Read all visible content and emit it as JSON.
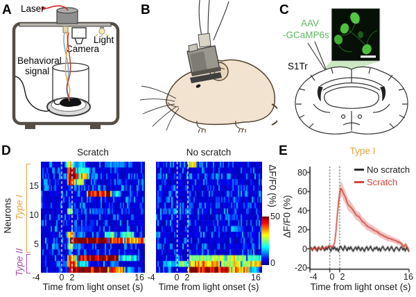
{
  "panel_letters": {
    "a": "A",
    "b": "B",
    "c": "C",
    "d": "D",
    "e": "E"
  },
  "panel_a": {
    "laser_label": "Laser",
    "camera_label": "Camera",
    "light_label": "Light",
    "behavioral_line1": "Behavioral",
    "behavioral_line2": "signal"
  },
  "panel_c": {
    "aav_line1": "AAV",
    "aav_line2": "-GCaMP6s",
    "region_label": "S1Tr"
  },
  "panel_d": {
    "title_left": "Scratch",
    "title_right": "No scratch",
    "y_axis_label": "Neurons",
    "type1_label": "Type I",
    "type2_label": "Type II",
    "y_ticks": [
      "15",
      "10",
      "5"
    ],
    "x_ticks": [
      "-4",
      "0",
      "2",
      "16"
    ],
    "x_axis_label": "Time from light onset (s)",
    "colorbar_label": "ΔF/F0 (%)",
    "colorbar_max": "50",
    "colorbar_min": "0"
  },
  "panel_e": {
    "title": "Type I",
    "legend": [
      {
        "label": "No scratch",
        "color": "#2b2b2b"
      },
      {
        "label": "Scratch",
        "color": "#cf453c"
      }
    ],
    "y_label": "ΔF/F0 (%)",
    "x_label": "Time from light onset (s)",
    "y_ticks": [
      "80",
      "60",
      "40",
      "20",
      "0",
      "-20"
    ],
    "x_ticks": [
      "-4",
      "0",
      "2",
      "16"
    ]
  },
  "colors": {
    "type1_orange": "#e8a33d",
    "type2_purple": "#a94fa4",
    "scratch_red": "#cf453c",
    "no_scratch_black": "#2b2b2b",
    "gcamp_green": "#5cb85c",
    "heatmap_dash": "#ffffff"
  },
  "chart_data": [
    {
      "type": "heatmap",
      "title": "Scratch",
      "x_range": [
        -4,
        16
      ],
      "neurons": 19,
      "type1_neurons": [
        4,
        19
      ],
      "type2_neurons": [
        1,
        3
      ],
      "value_range": [
        0,
        50
      ],
      "colormap": "jet",
      "event_lines_s": [
        0,
        2
      ],
      "seed": 11,
      "events": [
        {
          "neuron": 19,
          "segments": [
            [
              0.6,
              2.4,
              32
            ],
            [
              2.4,
              4.6,
              15
            ],
            [
              8,
              12.5,
              12
            ]
          ]
        },
        {
          "neuron": 18,
          "segments": [
            [
              0.8,
              2.8,
              42
            ],
            [
              2.8,
              5.5,
              20
            ],
            [
              10,
              11,
              8
            ]
          ]
        },
        {
          "neuron": 17,
          "segments": [
            [
              0.9,
              3.3,
              50
            ],
            [
              3.3,
              5.2,
              36
            ],
            [
              5.2,
              7,
              14
            ]
          ]
        },
        {
          "neuron": 16,
          "segments": [
            [
              0.9,
              2.6,
              48
            ],
            [
              2.6,
              4.3,
              32
            ]
          ]
        },
        {
          "neuron": 15,
          "segments": [
            [
              1,
              2,
              10
            ]
          ]
        },
        {
          "neuron": 14,
          "segments": [
            [
              4.6,
              9.6,
              44
            ],
            [
              9.6,
              11.2,
              18
            ]
          ]
        },
        {
          "neuron": 13,
          "segments": [
            [
              2,
              3,
              6
            ]
          ]
        },
        {
          "neuron": 12,
          "segments": [
            [
              1,
              2.2,
              12
            ]
          ]
        },
        {
          "neuron": 11,
          "segments": [
            [
              0.8,
              2.1,
              30
            ],
            [
              2.1,
              3.2,
              12
            ],
            [
              6,
              8.2,
              10
            ]
          ]
        },
        {
          "neuron": 10,
          "segments": [
            [
              3,
              4,
              6
            ]
          ]
        },
        {
          "neuron": 9,
          "segments": [
            [
              5,
              6.5,
              7
            ]
          ]
        },
        {
          "neuron": 8,
          "segments": [
            [
              2,
              6,
              9
            ]
          ]
        },
        {
          "neuron": 7,
          "segments": [
            [
              0.8,
              2.5,
              34
            ],
            [
              2.5,
              4.2,
              14
            ],
            [
              8,
              10.2,
              24
            ],
            [
              11,
              14,
              22
            ]
          ]
        },
        {
          "neuron": 6,
          "segments": [
            [
              1.2,
              8.8,
              52
            ],
            [
              8.8,
              12,
              42
            ],
            [
              12,
              16,
              38
            ]
          ]
        },
        {
          "neuron": 5,
          "segments": [
            [
              0.9,
              2.2,
              30
            ],
            [
              2.2,
              4,
              12
            ]
          ]
        },
        {
          "neuron": 4,
          "segments": [
            [
              1,
              1.9,
              13
            ]
          ]
        },
        {
          "neuron": 3,
          "segments": [
            [
              0.9,
              2.9,
              36
            ],
            [
              2.9,
              11,
              52
            ],
            [
              11,
              14.5,
              20
            ]
          ]
        },
        {
          "neuron": 2,
          "segments": [
            [
              0.8,
              3,
              40
            ],
            [
              3,
              5.2,
              18
            ],
            [
              9,
              10.6,
              14
            ]
          ]
        },
        {
          "neuron": 1,
          "segments": [
            [
              1.1,
              9,
              52
            ],
            [
              9,
              12.2,
              38
            ],
            [
              12.2,
              14,
              16
            ]
          ]
        }
      ]
    },
    {
      "type": "heatmap",
      "title": "No scratch",
      "x_range": [
        -4,
        16
      ],
      "neurons": 19,
      "value_range": [
        0,
        50
      ],
      "colormap": "jet",
      "event_lines_s": [
        0,
        2
      ],
      "seed": 23,
      "events": [
        {
          "neuron": 19,
          "segments": [
            [
              1.8,
              3.7,
              32
            ],
            [
              3.7,
              5,
              12
            ]
          ]
        },
        {
          "neuron": 16,
          "segments": [
            [
              9,
              11.5,
              8
            ]
          ]
        },
        {
          "neuron": 13,
          "segments": [
            [
              10,
              12,
              8
            ]
          ]
        },
        {
          "neuron": 10,
          "segments": [
            [
              9,
              11.2,
              10
            ]
          ]
        },
        {
          "neuron": 8,
          "segments": [
            [
              10.5,
              12.6,
              10
            ]
          ]
        },
        {
          "neuron": 5,
          "segments": [
            [
              12,
              13.6,
              8
            ]
          ]
        },
        {
          "neuron": 3,
          "segments": [
            [
              2,
              9,
              26
            ],
            [
              9,
              13,
              30
            ],
            [
              13,
              16,
              22
            ]
          ]
        },
        {
          "neuron": 2,
          "segments": [
            [
              -3,
              0,
              16
            ],
            [
              0,
              2,
              28
            ],
            [
              2,
              8,
              38
            ],
            [
              8,
              12,
              30
            ],
            [
              12,
              16,
              34
            ]
          ]
        },
        {
          "neuron": 1,
          "segments": [
            [
              1.8,
              10,
              50
            ],
            [
              10,
              13.6,
              36
            ],
            [
              13.6,
              15.5,
              18
            ]
          ]
        }
      ]
    },
    {
      "type": "line",
      "title": "Type I",
      "xlabel": "Time from light onset (s)",
      "ylabel": "ΔF/F0 (%)",
      "xlim": [
        -4,
        16
      ],
      "ylim": [
        -20,
        86
      ],
      "x_tick_values": [
        -4,
        0,
        2,
        16
      ],
      "y_tick_values": [
        -20,
        0,
        20,
        40,
        60,
        80
      ],
      "guide_lines_s": [
        0,
        2
      ],
      "x_start": -4,
      "x_step": 0.25,
      "series": [
        {
          "name": "No scratch",
          "color": "#2b2b2b",
          "band": "rgba(130,130,130,0.35)",
          "mean": [
            -0.5,
            1.2,
            -1.8,
            0.8,
            2.2,
            -0.6,
            -2.4,
            1.5,
            0.2,
            -1.2,
            2.8,
            0.5,
            -2.0,
            1.0,
            -0.8,
            2.5,
            0.0,
            -2.6,
            1.8,
            -0.4,
            2.0,
            -1.5,
            0.6,
            -2.8,
            1.2,
            2.6,
            -0.2,
            -1.8,
            3.0,
            0.8,
            -2.2,
            1.6,
            -0.6,
            2.2,
            -1.0,
            -2.5,
            0.4,
            1.8,
            -1.4,
            2.4,
            0.0,
            -2.0,
            1.4,
            -0.5,
            -2.8,
            0.9,
            2.1,
            -1.6,
            0.3,
            2.7,
            -0.9,
            -2.3,
            1.1,
            -0.2,
            2.0,
            -1.9,
            0.7,
            -2.6,
            1.3,
            2.3,
            -0.8,
            -1.5,
            0.1,
            1.9,
            -2.2,
            0.6,
            2.4,
            -1.1,
            -2.7,
            0.8,
            1.7,
            -0.3,
            -2.1,
            1.0,
            2.2,
            -1.3,
            0.5,
            -2.4,
            1.5,
            -0.7,
            -3.0
          ],
          "sem": 2.2
        },
        {
          "name": "Scratch",
          "color": "#cf453c",
          "band": "rgba(207,69,60,0.32)",
          "mean": [
            -1.0,
            0.5,
            -0.8,
            1.2,
            0.2,
            -1.5,
            0.8,
            1.8,
            -0.4,
            0.3,
            1.5,
            -0.9,
            0.6,
            2.2,
            1.0,
            2.8,
            3.2,
            2.4,
            1.8,
            3.0,
            7,
            18,
            34,
            48,
            58,
            63,
            61.5,
            58,
            55.5,
            53,
            48.5,
            46,
            44.5,
            43.5,
            42,
            40,
            38,
            36,
            34.5,
            34,
            33,
            31,
            29,
            28,
            27,
            25.5,
            24,
            23,
            22.5,
            21.5,
            21,
            20,
            19,
            18.5,
            18,
            17,
            16,
            15,
            14.5,
            14,
            13,
            12.5,
            12,
            11,
            11,
            10.5,
            10,
            9.5,
            9,
            8.5,
            8,
            7,
            7,
            6,
            5,
            3.5,
            2,
            4.5,
            3,
            0.5,
            -2
          ],
          "sem": [
            1.5,
            1.5,
            1.5,
            1.5,
            1.5,
            1.5,
            1.5,
            1.5,
            1.5,
            1.5,
            1.5,
            1.5,
            1.5,
            1.5,
            1.5,
            1.5,
            1.5,
            1.5,
            1.5,
            1.5,
            3,
            5,
            6.5,
            7.5,
            8,
            8,
            7.5,
            7.5,
            7,
            6.5,
            6.5,
            6,
            6,
            6,
            5.5,
            5.5,
            5.5,
            5,
            5,
            5,
            5,
            5,
            5,
            4.5,
            4.5,
            4.5,
            4.5,
            4,
            4,
            4,
            4,
            4,
            4,
            3.5,
            3.5,
            3.5,
            3.5,
            3.5,
            3.5,
            3.5,
            3.5,
            3.5,
            3.5,
            3.5,
            3.5,
            3,
            3,
            3,
            3,
            3,
            3,
            3,
            3,
            2.5,
            2.5,
            2.5,
            2.5,
            2.5,
            2.5,
            2.5,
            2.5
          ]
        }
      ]
    }
  ]
}
